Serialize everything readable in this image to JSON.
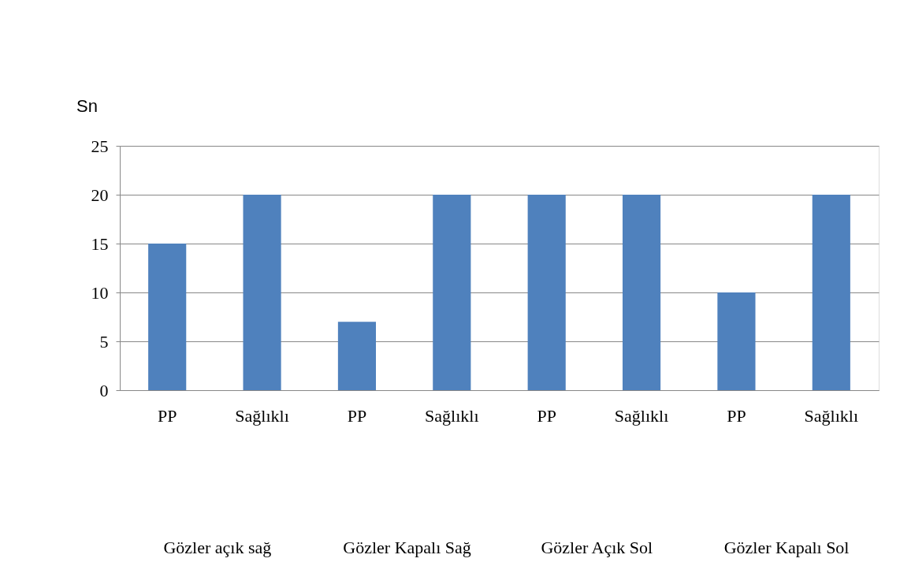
{
  "chart_data": {
    "type": "bar",
    "ylabel": "Sn",
    "categories": [
      "PP",
      "Sağlıklı",
      "PP",
      "Sağlıklı",
      "PP",
      "Sağlıklı",
      "PP",
      "Sağlıklı"
    ],
    "values": [
      15,
      20,
      7,
      20,
      20,
      20,
      10,
      20
    ],
    "color": "#4f81bd",
    "ylim": [
      0,
      25
    ],
    "yticks": [
      0,
      5,
      10,
      15,
      20,
      25
    ],
    "grid": "y",
    "annotations": [
      "Gözler açık sağ",
      "Gözler Kapalı Sağ",
      "Gözler Açık Sol",
      "Gözler Kapalı Sol"
    ]
  }
}
